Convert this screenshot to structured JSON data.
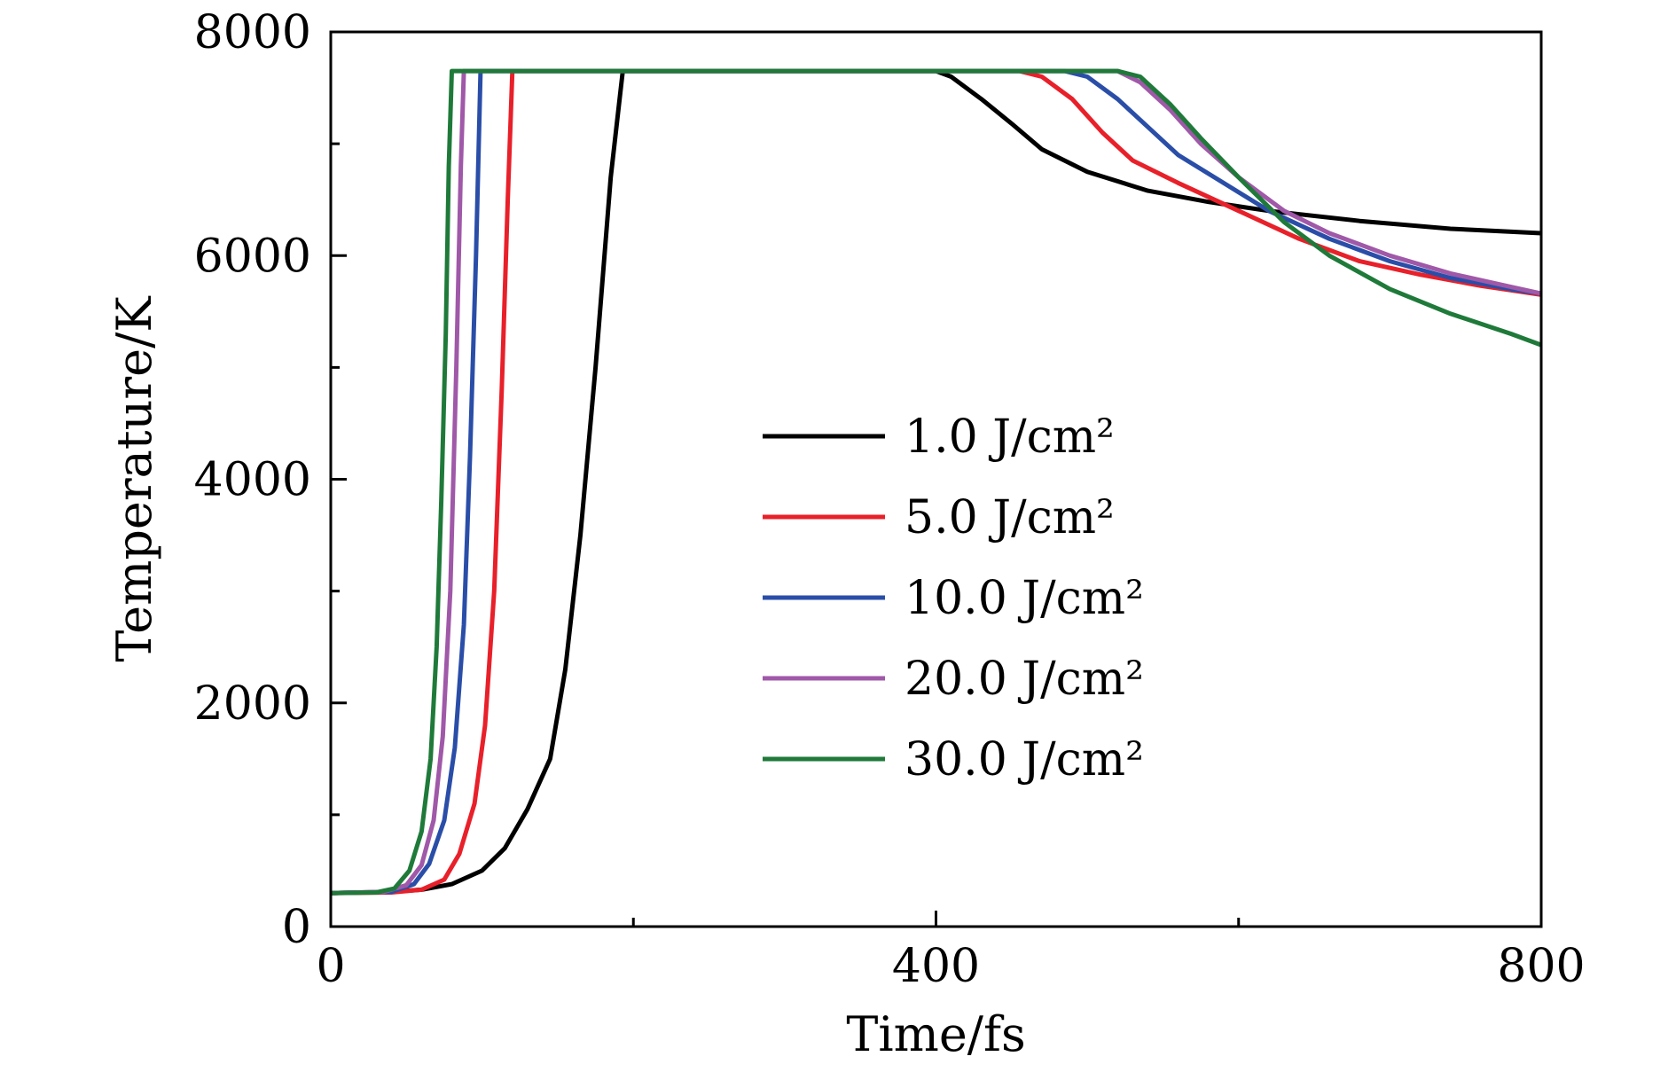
{
  "chart_data": {
    "type": "line",
    "xlabel": "Time/fs",
    "ylabel": "Temperature/K",
    "xlim": [
      0,
      800
    ],
    "ylim": [
      0,
      8000
    ],
    "x_major_ticks": [
      0,
      400,
      800
    ],
    "x_tick_labels": [
      "0",
      "400",
      "800"
    ],
    "x_minor_ticks": [
      200,
      600
    ],
    "y_major_ticks": [
      0,
      2000,
      4000,
      6000,
      8000
    ],
    "y_tick_labels": [
      "0",
      "2000",
      "4000",
      "6000",
      "8000"
    ],
    "y_minor_ticks": [
      1000,
      3000,
      5000,
      7000
    ],
    "grid": false,
    "legend_position": "center-right",
    "series": [
      {
        "name": "1.0 J/cm²",
        "color": "#000000",
        "points": [
          [
            0,
            300
          ],
          [
            40,
            310
          ],
          [
            60,
            330
          ],
          [
            80,
            380
          ],
          [
            100,
            500
          ],
          [
            115,
            700
          ],
          [
            130,
            1050
          ],
          [
            145,
            1500
          ],
          [
            155,
            2300
          ],
          [
            165,
            3500
          ],
          [
            175,
            5000
          ],
          [
            185,
            6700
          ],
          [
            193,
            7650
          ],
          [
            400,
            7650
          ],
          [
            410,
            7600
          ],
          [
            430,
            7400
          ],
          [
            450,
            7180
          ],
          [
            470,
            6950
          ],
          [
            500,
            6750
          ],
          [
            540,
            6580
          ],
          [
            580,
            6480
          ],
          [
            620,
            6400
          ],
          [
            680,
            6310
          ],
          [
            740,
            6240
          ],
          [
            800,
            6200
          ]
        ]
      },
      {
        "name": "5.0 J/cm²",
        "color": "#e8202a",
        "points": [
          [
            0,
            300
          ],
          [
            40,
            305
          ],
          [
            60,
            330
          ],
          [
            75,
            420
          ],
          [
            85,
            650
          ],
          [
            95,
            1100
          ],
          [
            102,
            1800
          ],
          [
            108,
            3000
          ],
          [
            113,
            4800
          ],
          [
            117,
            6500
          ],
          [
            120,
            7650
          ],
          [
            455,
            7650
          ],
          [
            470,
            7600
          ],
          [
            490,
            7400
          ],
          [
            510,
            7100
          ],
          [
            530,
            6850
          ],
          [
            560,
            6650
          ],
          [
            600,
            6400
          ],
          [
            640,
            6150
          ],
          [
            680,
            5950
          ],
          [
            720,
            5830
          ],
          [
            760,
            5730
          ],
          [
            800,
            5650
          ]
        ]
      },
      {
        "name": "10.0 J/cm²",
        "color": "#2a4ea8",
        "points": [
          [
            0,
            300
          ],
          [
            40,
            310
          ],
          [
            55,
            380
          ],
          [
            65,
            560
          ],
          [
            75,
            950
          ],
          [
            82,
            1600
          ],
          [
            88,
            2700
          ],
          [
            92,
            4200
          ],
          [
            96,
            6000
          ],
          [
            99,
            7650
          ],
          [
            485,
            7650
          ],
          [
            500,
            7600
          ],
          [
            520,
            7400
          ],
          [
            540,
            7150
          ],
          [
            560,
            6900
          ],
          [
            590,
            6650
          ],
          [
            620,
            6400
          ],
          [
            660,
            6150
          ],
          [
            700,
            5950
          ],
          [
            740,
            5800
          ],
          [
            780,
            5700
          ],
          [
            800,
            5660
          ]
        ]
      },
      {
        "name": "20.0 J/cm²",
        "color": "#a058a8",
        "points": [
          [
            0,
            300
          ],
          [
            35,
            310
          ],
          [
            50,
            370
          ],
          [
            60,
            550
          ],
          [
            68,
            950
          ],
          [
            74,
            1700
          ],
          [
            79,
            3000
          ],
          [
            83,
            5000
          ],
          [
            86,
            6800
          ],
          [
            88,
            7650
          ],
          [
            520,
            7650
          ],
          [
            535,
            7550
          ],
          [
            555,
            7300
          ],
          [
            575,
            7000
          ],
          [
            600,
            6700
          ],
          [
            630,
            6400
          ],
          [
            660,
            6200
          ],
          [
            700,
            6000
          ],
          [
            740,
            5840
          ],
          [
            780,
            5720
          ],
          [
            800,
            5660
          ]
        ]
      },
      {
        "name": "30.0 J/cm²",
        "color": "#1f7a3a",
        "points": [
          [
            0,
            300
          ],
          [
            30,
            305
          ],
          [
            42,
            340
          ],
          [
            52,
            500
          ],
          [
            60,
            850
          ],
          [
            66,
            1500
          ],
          [
            70,
            2500
          ],
          [
            73,
            3800
          ],
          [
            76,
            5300
          ],
          [
            78,
            6800
          ],
          [
            80,
            7650
          ],
          [
            520,
            7650
          ],
          [
            535,
            7600
          ],
          [
            555,
            7350
          ],
          [
            575,
            7050
          ],
          [
            600,
            6700
          ],
          [
            630,
            6300
          ],
          [
            660,
            6000
          ],
          [
            700,
            5700
          ],
          [
            740,
            5480
          ],
          [
            780,
            5300
          ],
          [
            800,
            5200
          ]
        ]
      }
    ]
  }
}
